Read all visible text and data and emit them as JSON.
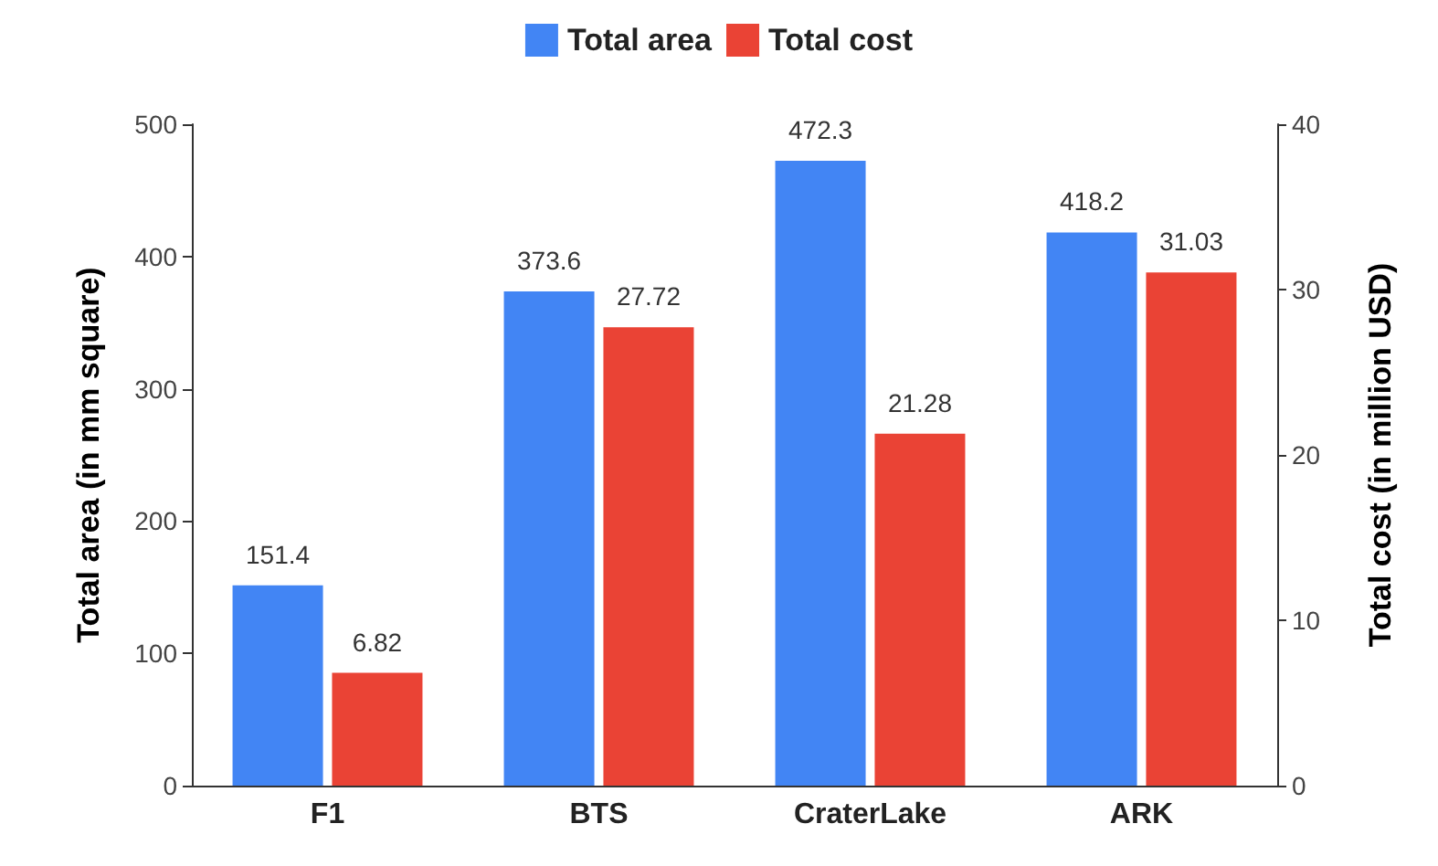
{
  "chart_data": {
    "type": "bar",
    "categories": [
      "F1",
      "BTS",
      "CraterLake",
      "ARK"
    ],
    "series": [
      {
        "name": "Total area",
        "color": "#4285f4",
        "values": [
          151.4,
          373.6,
          472.3,
          418.2
        ]
      },
      {
        "name": "Total cost",
        "color": "#ea4335",
        "values": [
          6.82,
          27.72,
          21.28,
          31.03
        ],
        "axis": "y2"
      }
    ],
    "ylabel": "Total area (in mm square)",
    "y2label": "Total cost (in million USD)",
    "ylim": [
      0,
      500
    ],
    "yticks": [
      0,
      100,
      200,
      300,
      400,
      500
    ],
    "y2lim": [
      0,
      40
    ],
    "y2ticks": [
      0,
      10,
      20,
      30,
      40
    ],
    "data_labels": true,
    "legend": "top",
    "grid": false
  }
}
